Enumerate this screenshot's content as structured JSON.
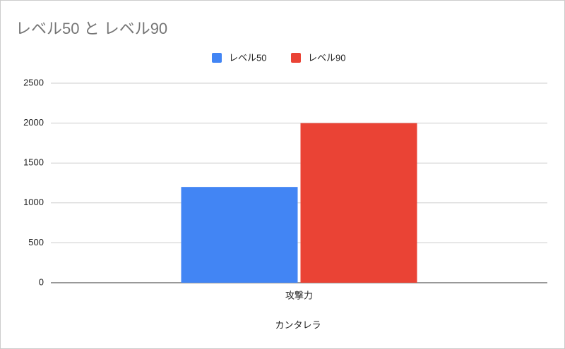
{
  "chart_data": {
    "type": "bar",
    "title": "レベル50 と レベル90",
    "categories": [
      "攻撃力"
    ],
    "series": [
      {
        "name": "レベル50",
        "color": "#4285f4",
        "values": [
          1200
        ]
      },
      {
        "name": "レベル90",
        "color": "#ea4335",
        "values": [
          2000
        ]
      }
    ],
    "x_label": "カンタレラ",
    "ylim": [
      0,
      2500
    ],
    "yticks": [
      0,
      500,
      1000,
      1500,
      2000,
      2500
    ],
    "grid": true,
    "legend": "top"
  }
}
